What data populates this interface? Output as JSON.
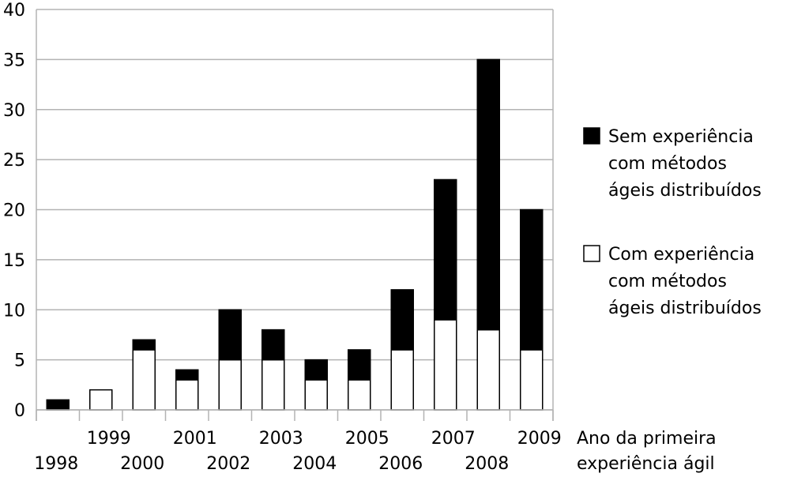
{
  "chart_data": {
    "type": "bar",
    "stacked": true,
    "categories": [
      "1998",
      "1999",
      "2000",
      "2001",
      "2002",
      "2003",
      "2004",
      "2005",
      "2006",
      "2007",
      "2008",
      "2009"
    ],
    "series": [
      {
        "name": "Com experiência com métodos ágeis distribuídos",
        "values": [
          0,
          2,
          6,
          3,
          5,
          5,
          3,
          3,
          6,
          9,
          8,
          6
        ],
        "color": "#ffffff"
      },
      {
        "name": "Sem experiência com métodos ágeis distribuídos",
        "values": [
          1,
          0,
          1,
          1,
          5,
          3,
          2,
          3,
          6,
          14,
          27,
          14
        ],
        "color": "#000000"
      }
    ],
    "ylim": [
      0,
      40
    ],
    "yticks": [
      0,
      5,
      10,
      15,
      20,
      25,
      30,
      35,
      40
    ],
    "grid": true,
    "legend_position": "right",
    "legend": [
      {
        "lines": [
          "Sem experiência",
          "com métodos",
          "ágeis distribuídos"
        ],
        "color": "#000000"
      },
      {
        "lines": [
          "Com experiência",
          "com métodos",
          "ágeis distribuídos"
        ],
        "color": "#ffffff"
      }
    ],
    "xlabel_lines": [
      "Ano da primeira",
      "experiência ágil"
    ]
  }
}
